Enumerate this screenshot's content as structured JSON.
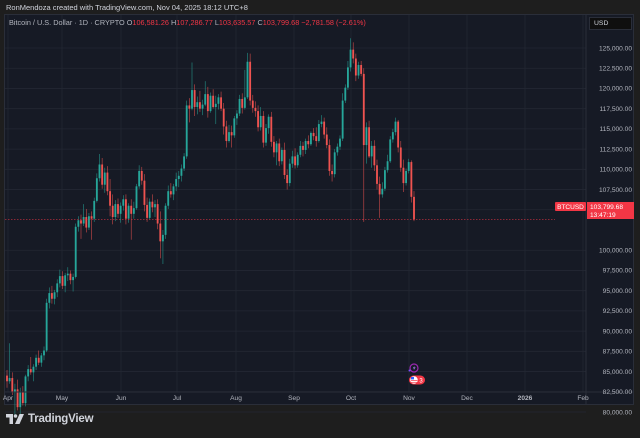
{
  "credit": "RonMendoza created with TradingView.com, Nov 04, 2025 18:12 UTC+8",
  "legend": {
    "symbol": "Bitcoin / U.S. Dollar · 1D · CRYPTO",
    "open_label": "O",
    "open": "106,581.26",
    "high_label": "H",
    "high": "107,286.77",
    "low_label": "L",
    "low": "103,635.57",
    "close_label": "C",
    "close": "103,799.68",
    "change": "−2,781.58 (−2.61%)"
  },
  "currency": "USD",
  "price_tag": {
    "symbol": "BTCUSD",
    "price": "103,799.68",
    "countdown": "13:47:19"
  },
  "brand": "TradingView",
  "colors": {
    "up": "#26a69a",
    "down": "#ef5350",
    "background": "#161a25",
    "grid": "#232733",
    "tag": "#f23645"
  },
  "chart_data": {
    "type": "candlestick",
    "title": "Bitcoin / U.S. Dollar · 1D · CRYPTO",
    "xlabel": "",
    "ylabel": "USD",
    "ylim": [
      79000,
      127000
    ],
    "y_ticks": [
      "125,000.00",
      "122,500.00",
      "120,000.00",
      "117,500.00",
      "115,000.00",
      "112,500.00",
      "110,000.00",
      "107,500.00",
      "105,000.00",
      "100,000.00",
      "97,500.00",
      "95,000.00",
      "92,500.00",
      "90,000.00",
      "87,500.00",
      "85,000.00",
      "82,500.00",
      "80,000.00"
    ],
    "y_tick_values": [
      125000,
      122500,
      120000,
      117500,
      115000,
      112500,
      110000,
      107500,
      105000,
      100000,
      97500,
      95000,
      92500,
      90000,
      87500,
      85000,
      82500,
      80000
    ],
    "x_ticks": [
      "Apr",
      "May",
      "Jun",
      "Jul",
      "Aug",
      "Sep",
      "Oct",
      "Nov",
      "Dec",
      "2026",
      "Feb"
    ],
    "x_tick_pos": [
      8,
      62,
      121,
      177,
      236,
      294,
      351,
      409,
      467,
      525,
      583
    ],
    "last_price": 103799.68,
    "ohlc": [
      [
        84500,
        85200,
        83000,
        83800
      ],
      [
        83800,
        88500,
        83500,
        84200
      ],
      [
        84200,
        84900,
        82100,
        82400
      ],
      [
        82400,
        83500,
        79500,
        82800
      ],
      [
        82800,
        84000,
        80200,
        80600
      ],
      [
        80600,
        83000,
        79600,
        82500
      ],
      [
        82500,
        83200,
        80800,
        81100
      ],
      [
        81100,
        84600,
        80700,
        84400
      ],
      [
        84400,
        85800,
        83800,
        85300
      ],
      [
        85300,
        86800,
        84600,
        84900
      ],
      [
        84900,
        85900,
        83800,
        85600
      ],
      [
        85600,
        87100,
        85200,
        86700
      ],
      [
        86700,
        87600,
        85800,
        86100
      ],
      [
        86100,
        87300,
        85600,
        87000
      ],
      [
        87000,
        88100,
        86400,
        87600
      ],
      [
        87600,
        94000,
        87400,
        93500
      ],
      [
        93500,
        95400,
        92800,
        94700
      ],
      [
        94700,
        95600,
        93400,
        94000
      ],
      [
        94000,
        95100,
        93300,
        94800
      ],
      [
        94800,
        96400,
        94200,
        95900
      ],
      [
        95900,
        97600,
        95400,
        96800
      ],
      [
        96800,
        97400,
        95200,
        95600
      ],
      [
        95600,
        97200,
        94800,
        96900
      ],
      [
        96900,
        97900,
        96200,
        97100
      ],
      [
        97100,
        97500,
        95800,
        96300
      ],
      [
        96300,
        97100,
        94900,
        96700
      ],
      [
        96700,
        103300,
        96500,
        102900
      ],
      [
        102900,
        104200,
        102300,
        103700
      ],
      [
        103700,
        104400,
        101400,
        103300
      ],
      [
        103300,
        105700,
        103000,
        104100
      ],
      [
        104100,
        105100,
        102200,
        102800
      ],
      [
        102800,
        104600,
        102500,
        104200
      ],
      [
        104200,
        104800,
        101300,
        103900
      ],
      [
        103900,
        106500,
        103500,
        106100
      ],
      [
        106100,
        109500,
        105900,
        108900
      ],
      [
        108900,
        111900,
        108500,
        110600
      ],
      [
        110600,
        111400,
        107600,
        108100
      ],
      [
        108100,
        110200,
        107100,
        109600
      ],
      [
        109600,
        110400,
        106800,
        107300
      ],
      [
        107300,
        108800,
        104200,
        105500
      ],
      [
        105500,
        106900,
        103200,
        104100
      ],
      [
        104100,
        106200,
        103600,
        105700
      ],
      [
        105700,
        106400,
        104000,
        104500
      ],
      [
        104500,
        105900,
        103400,
        105500
      ],
      [
        105500,
        106800,
        104900,
        106300
      ],
      [
        106300,
        106900,
        103200,
        103900
      ],
      [
        103900,
        105800,
        103400,
        105500
      ],
      [
        105500,
        106300,
        101300,
        104500
      ],
      [
        104500,
        106000,
        103900,
        105200
      ],
      [
        105200,
        108200,
        105000,
        107900
      ],
      [
        107900,
        110500,
        107600,
        109800
      ],
      [
        109800,
        110300,
        108100,
        108600
      ],
      [
        108600,
        109400,
        104800,
        105600
      ],
      [
        105600,
        106500,
        103500,
        104000
      ],
      [
        104000,
        106400,
        103800,
        106000
      ],
      [
        106000,
        106900,
        104700,
        105300
      ],
      [
        105300,
        106200,
        104100,
        105700
      ],
      [
        105700,
        106300,
        102600,
        103300
      ],
      [
        103300,
        104800,
        99000,
        101100
      ],
      [
        101100,
        102500,
        98300,
        101900
      ],
      [
        101900,
        105800,
        101400,
        105500
      ],
      [
        105500,
        108000,
        105100,
        107300
      ],
      [
        107300,
        108300,
        106500,
        106900
      ],
      [
        106900,
        108200,
        106200,
        107900
      ],
      [
        107900,
        109600,
        107300,
        108800
      ],
      [
        108800,
        109800,
        107800,
        109200
      ],
      [
        109200,
        110600,
        108500,
        110100
      ],
      [
        110100,
        112000,
        109800,
        111600
      ],
      [
        111600,
        118500,
        111300,
        117900
      ],
      [
        117900,
        118800,
        115800,
        117500
      ],
      [
        117500,
        123200,
        117300,
        119800
      ],
      [
        119800,
        120500,
        116600,
        117700
      ],
      [
        117700,
        119000,
        116800,
        118300
      ],
      [
        118300,
        119700,
        117100,
        117500
      ],
      [
        117500,
        118600,
        116700,
        118000
      ],
      [
        118000,
        120900,
        117800,
        119300
      ],
      [
        119300,
        120200,
        116400,
        117200
      ],
      [
        117200,
        119500,
        117000,
        119100
      ],
      [
        119100,
        119900,
        117500,
        117700
      ],
      [
        117700,
        119100,
        115600,
        118100
      ],
      [
        118100,
        119300,
        117400,
        118900
      ],
      [
        118900,
        119600,
        117200,
        117500
      ],
      [
        117500,
        118200,
        114300,
        115300
      ],
      [
        115300,
        116000,
        112700,
        113500
      ],
      [
        113500,
        115500,
        113300,
        114600
      ],
      [
        114600,
        115400,
        112700,
        114200
      ],
      [
        114200,
        116600,
        113900,
        116300
      ],
      [
        116300,
        117300,
        115500,
        116900
      ],
      [
        116900,
        119200,
        116600,
        118700
      ],
      [
        118700,
        119400,
        116900,
        117600
      ],
      [
        117600,
        122300,
        117400,
        118900
      ],
      [
        118900,
        124400,
        118700,
        123300
      ],
      [
        123300,
        124300,
        117900,
        118500
      ],
      [
        118500,
        119200,
        117000,
        117600
      ],
      [
        117600,
        118400,
        116500,
        117200
      ],
      [
        117200,
        117900,
        114700,
        115200
      ],
      [
        115200,
        117700,
        114800,
        116600
      ],
      [
        116600,
        117200,
        112700,
        113300
      ],
      [
        113300,
        115600,
        112900,
        115100
      ],
      [
        115100,
        116800,
        114400,
        116500
      ],
      [
        116500,
        117100,
        112800,
        113400
      ],
      [
        113400,
        114100,
        111500,
        112100
      ],
      [
        112100,
        113500,
        110500,
        113200
      ],
      [
        113200,
        113800,
        110400,
        111000
      ],
      [
        111000,
        112700,
        110600,
        112400
      ],
      [
        112400,
        113300,
        108800,
        109300
      ],
      [
        109300,
        110000,
        107500,
        108300
      ],
      [
        108300,
        111300,
        107900,
        110700
      ],
      [
        110700,
        112300,
        110200,
        111600
      ],
      [
        111600,
        112600,
        110100,
        110500
      ],
      [
        110500,
        112100,
        110200,
        111800
      ],
      [
        111800,
        113500,
        111500,
        112900
      ],
      [
        112900,
        113400,
        111600,
        112400
      ],
      [
        112400,
        113800,
        111900,
        113500
      ],
      [
        113500,
        114200,
        112600,
        113100
      ],
      [
        113100,
        114700,
        112900,
        114500
      ],
      [
        114500,
        115100,
        113600,
        114100
      ],
      [
        114100,
        115200,
        112800,
        113500
      ],
      [
        113500,
        116100,
        113300,
        115600
      ],
      [
        115600,
        116700,
        115200,
        115900
      ],
      [
        115900,
        116400,
        113800,
        114300
      ],
      [
        114300,
        115200,
        112600,
        113000
      ],
      [
        113000,
        113700,
        109200,
        109800
      ],
      [
        109800,
        110600,
        108500,
        109400
      ],
      [
        109400,
        112500,
        109000,
        112100
      ],
      [
        112100,
        113200,
        111700,
        112800
      ],
      [
        112800,
        114200,
        112400,
        113800
      ],
      [
        113800,
        119400,
        113500,
        118500
      ],
      [
        118500,
        120500,
        118200,
        120100
      ],
      [
        120100,
        123400,
        119800,
        122600
      ],
      [
        122600,
        126200,
        122100,
        124800
      ],
      [
        124800,
        125700,
        123100,
        123700
      ],
      [
        123700,
        124300,
        120900,
        121600
      ],
      [
        121600,
        123300,
        121200,
        122900
      ],
      [
        122900,
        123400,
        121500,
        121800
      ],
      [
        121800,
        122500,
        103500,
        113000
      ],
      [
        113000,
        115800,
        110700,
        115200
      ],
      [
        115200,
        116000,
        111400,
        111600
      ],
      [
        111600,
        113500,
        110200,
        112900
      ],
      [
        112900,
        113600,
        109800,
        110500
      ],
      [
        110500,
        111200,
        107500,
        108200
      ],
      [
        108200,
        109100,
        104000,
        106900
      ],
      [
        106900,
        108400,
        106500,
        107600
      ],
      [
        107600,
        110300,
        107300,
        109900
      ],
      [
        109900,
        111800,
        109600,
        111000
      ],
      [
        111000,
        114100,
        110800,
        113700
      ],
      [
        113700,
        115000,
        113300,
        114600
      ],
      [
        114600,
        116400,
        114200,
        115900
      ],
      [
        115900,
        116100,
        112100,
        112700
      ],
      [
        112700,
        113500,
        109700,
        110200
      ],
      [
        110200,
        111200,
        107200,
        108300
      ],
      [
        108300,
        110100,
        108000,
        109800
      ],
      [
        109800,
        111300,
        109500,
        110900
      ],
      [
        110900,
        111100,
        105900,
        106600
      ],
      [
        106600,
        107300,
        103600,
        103800
      ]
    ]
  }
}
